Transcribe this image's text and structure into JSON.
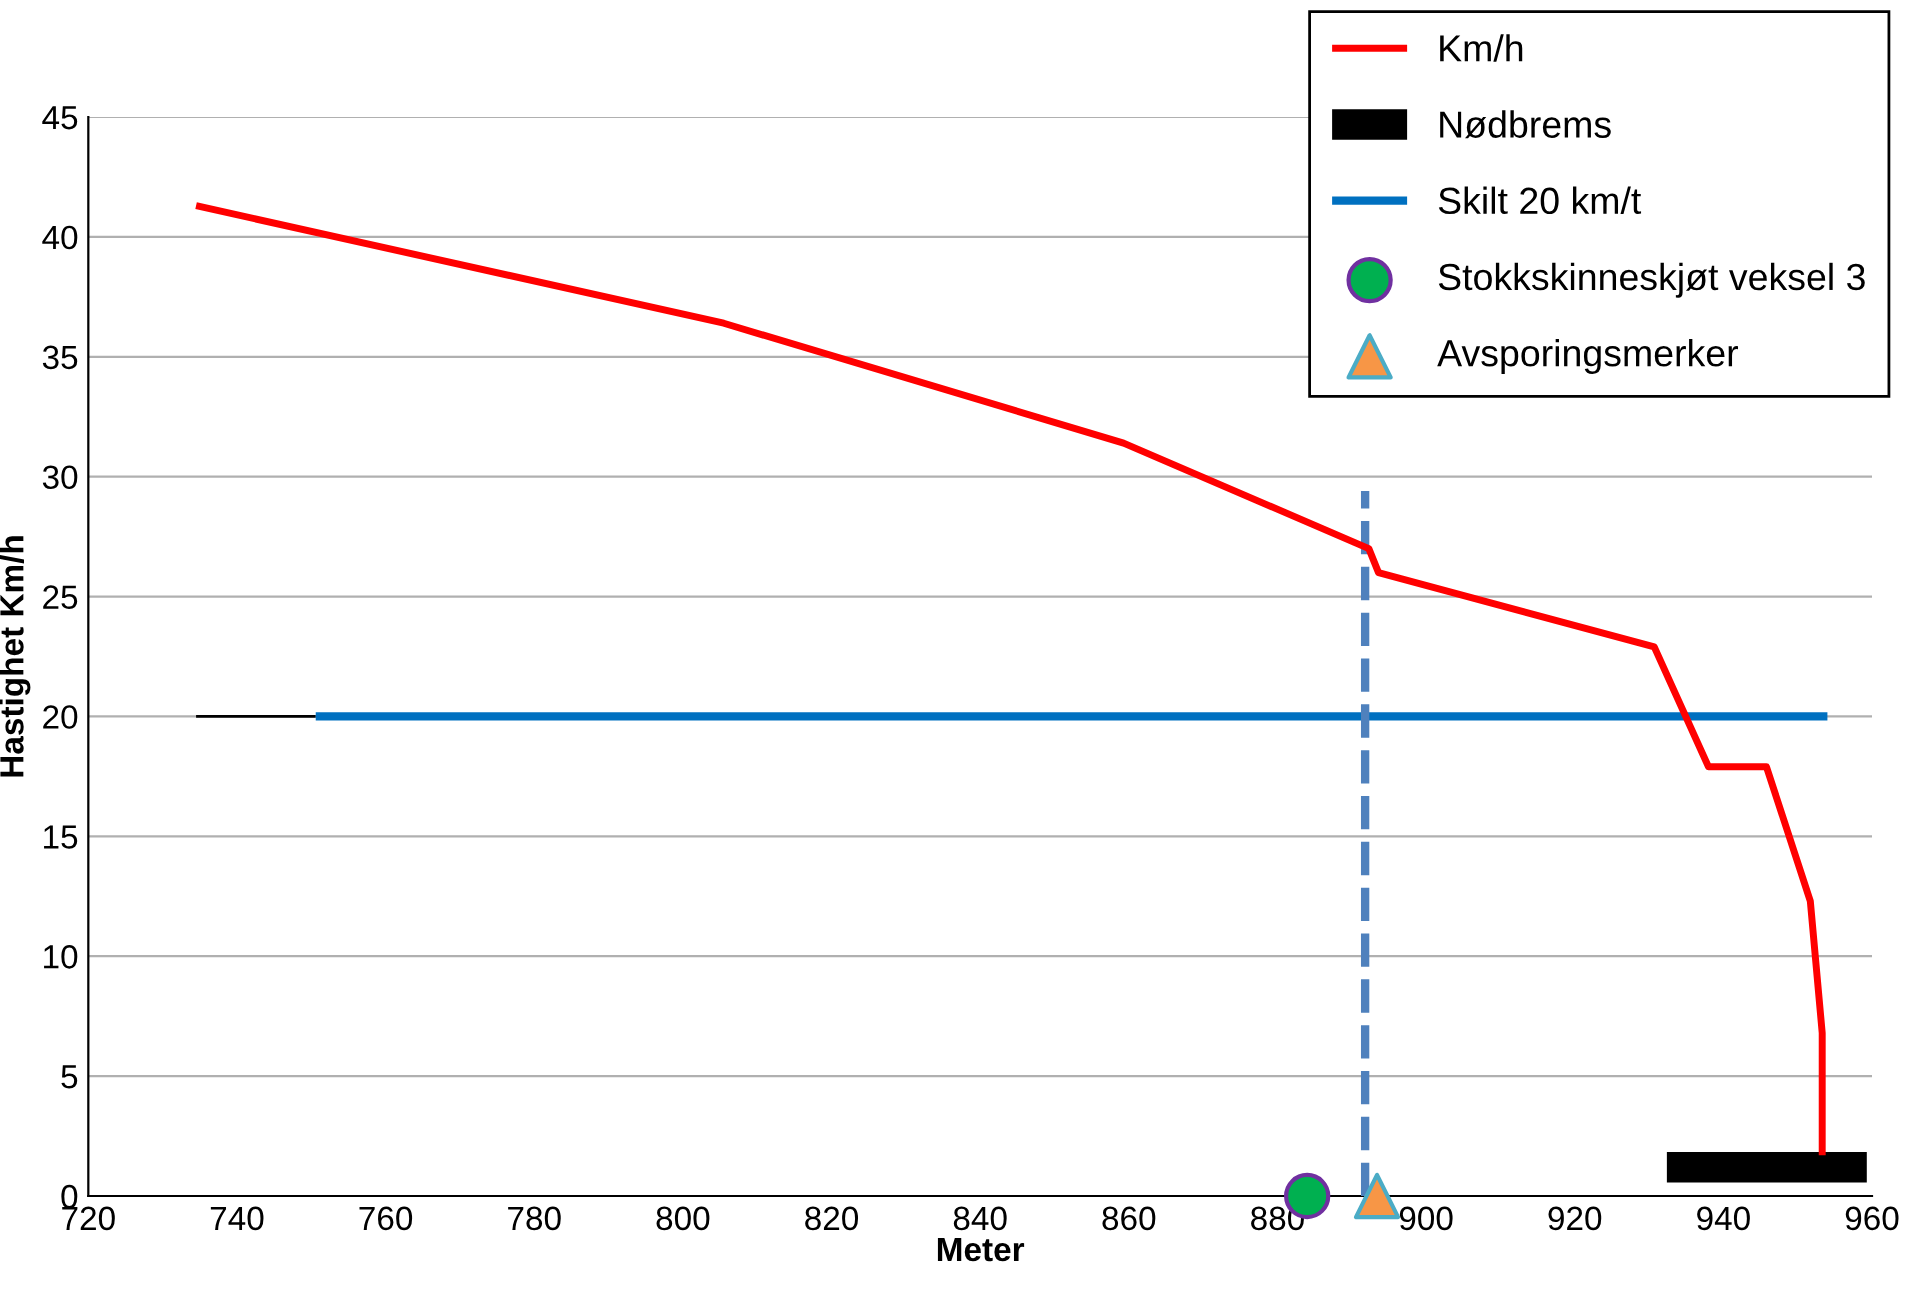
{
  "chart_data": {
    "type": "line",
    "xlabel": "Meter",
    "ylabel": "Hastighet Km/h",
    "xlim": [
      720,
      960
    ],
    "xticks": [
      720,
      740,
      760,
      780,
      800,
      820,
      840,
      860,
      880,
      900,
      920,
      940,
      960
    ],
    "ylim": [
      0,
      45
    ],
    "yticks": [
      0,
      5,
      10,
      15,
      20,
      25,
      30,
      35,
      40,
      45
    ],
    "grid": "y",
    "legend": "top right",
    "series": [
      {
        "color": "#000000",
        "x": [
          734.5,
          750.6
        ],
        "values": [
          20,
          20
        ]
      },
      {
        "name": "Km/h",
        "color": "#ff0000",
        "x": [
          734.5,
          805.5,
          859.3,
          892.3,
          893.6,
          930.7,
          938,
          945.8,
          951.7,
          953.3,
          953.3
        ],
        "values": [
          41.3,
          36.4,
          31.4,
          27,
          26,
          22.9,
          17.9,
          17.9,
          12.3,
          6.8,
          1.7
        ]
      },
      {
        "name": "Nødbrems",
        "color": "#000000",
        "x": [
          932.4,
          959.3
        ],
        "values": [
          1.2,
          1.2
        ]
      },
      {
        "name": "Skilt 20 km/t",
        "color": "#0070c0",
        "x": [
          750.6,
          954
        ],
        "values": [
          20,
          20
        ]
      },
      {
        "color": "#4f81bd",
        "x": [
          891.8,
          891.8
        ],
        "values": [
          0,
          29.4
        ],
        "line_style": "dashed"
      },
      {
        "name": "Stokkskinneskjøt veksel 3",
        "type": "scatter",
        "marker": "circle",
        "color": "#00b050",
        "x": [
          884
        ],
        "values": [
          0
        ]
      },
      {
        "name": "Avsporingsmerker",
        "type": "scatter",
        "marker": "triangle",
        "color": "#f79646",
        "x": [
          893.4
        ],
        "values": [
          0
        ]
      }
    ]
  }
}
